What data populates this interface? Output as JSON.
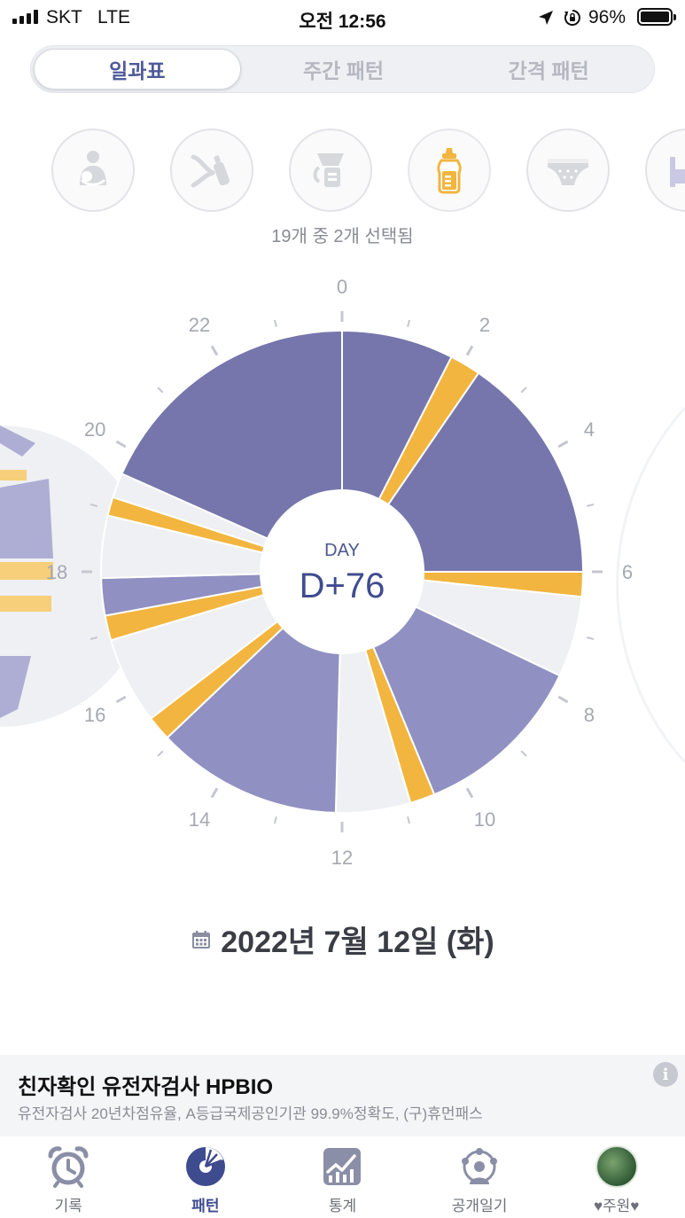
{
  "status_bar": {
    "carrier": "SKT",
    "network": "LTE",
    "time": "오전 12:56",
    "battery": "96%"
  },
  "segments": [
    {
      "label": "일과표",
      "active": true
    },
    {
      "label": "주간 패턴",
      "active": false
    },
    {
      "label": "간격 패턴",
      "active": false
    }
  ],
  "categories": [
    {
      "icon": "breastfeeding-icon",
      "selected": false
    },
    {
      "icon": "bottle-feeding-icon",
      "selected": false
    },
    {
      "icon": "breast-pump-icon",
      "selected": false
    },
    {
      "icon": "baby-bottle-icon",
      "selected": true
    },
    {
      "icon": "diaper-icon",
      "selected": false
    },
    {
      "icon": "crib-icon",
      "selected": false
    }
  ],
  "selection_summary": "19개 중 2개 선택됨",
  "chart_data": {
    "type": "pie",
    "hours": 24,
    "center_caption": "DAY",
    "center_value": "D+76",
    "hour_labels": [
      "0",
      "2",
      "4",
      "6",
      "8",
      "10",
      "12",
      "14",
      "16",
      "18",
      "20",
      "22"
    ],
    "segments": [
      {
        "start": 0.0,
        "end": 1.8,
        "kind": "sleep"
      },
      {
        "start": 1.8,
        "end": 2.3,
        "kind": "feeding"
      },
      {
        "start": 2.3,
        "end": 6.0,
        "kind": "sleep"
      },
      {
        "start": 6.0,
        "end": 6.4,
        "kind": "feeding"
      },
      {
        "start": 6.4,
        "end": 7.7,
        "kind": "awake"
      },
      {
        "start": 7.7,
        "end": 10.5,
        "kind": "nap"
      },
      {
        "start": 10.5,
        "end": 10.9,
        "kind": "feeding"
      },
      {
        "start": 10.9,
        "end": 12.1,
        "kind": "awake"
      },
      {
        "start": 12.1,
        "end": 15.1,
        "kind": "nap"
      },
      {
        "start": 15.1,
        "end": 15.5,
        "kind": "feeding"
      },
      {
        "start": 15.5,
        "end": 16.9,
        "kind": "awake"
      },
      {
        "start": 16.9,
        "end": 17.3,
        "kind": "feeding"
      },
      {
        "start": 17.3,
        "end": 17.9,
        "kind": "nap"
      },
      {
        "start": 17.9,
        "end": 18.9,
        "kind": "awake"
      },
      {
        "start": 18.9,
        "end": 19.2,
        "kind": "feeding"
      },
      {
        "start": 19.2,
        "end": 19.6,
        "kind": "awake"
      },
      {
        "start": 19.6,
        "end": 24.0,
        "kind": "sleep"
      }
    ],
    "colors": {
      "sleep": "#7676ad",
      "nap": "#9090c2",
      "feeding": "#f2b53f",
      "awake": "#eef0f4"
    }
  },
  "date_label": "2022년 7월 12일 (화)",
  "ad": {
    "title": "친자확인 유전자검사 HPBIO",
    "description": "유전자검사 20년차점유율, A등급국제공인기관 99.9%정확도, (구)휴먼패스"
  },
  "tabs": [
    {
      "label": "기록",
      "icon": "alarm-clock-icon",
      "active": false
    },
    {
      "label": "패턴",
      "icon": "pattern-icon",
      "active": true
    },
    {
      "label": "통계",
      "icon": "stats-icon",
      "active": false
    },
    {
      "label": "공개일기",
      "icon": "public-diary-icon",
      "active": false
    },
    {
      "label": "♥주원♥",
      "icon": "profile-avatar",
      "active": false
    }
  ]
}
